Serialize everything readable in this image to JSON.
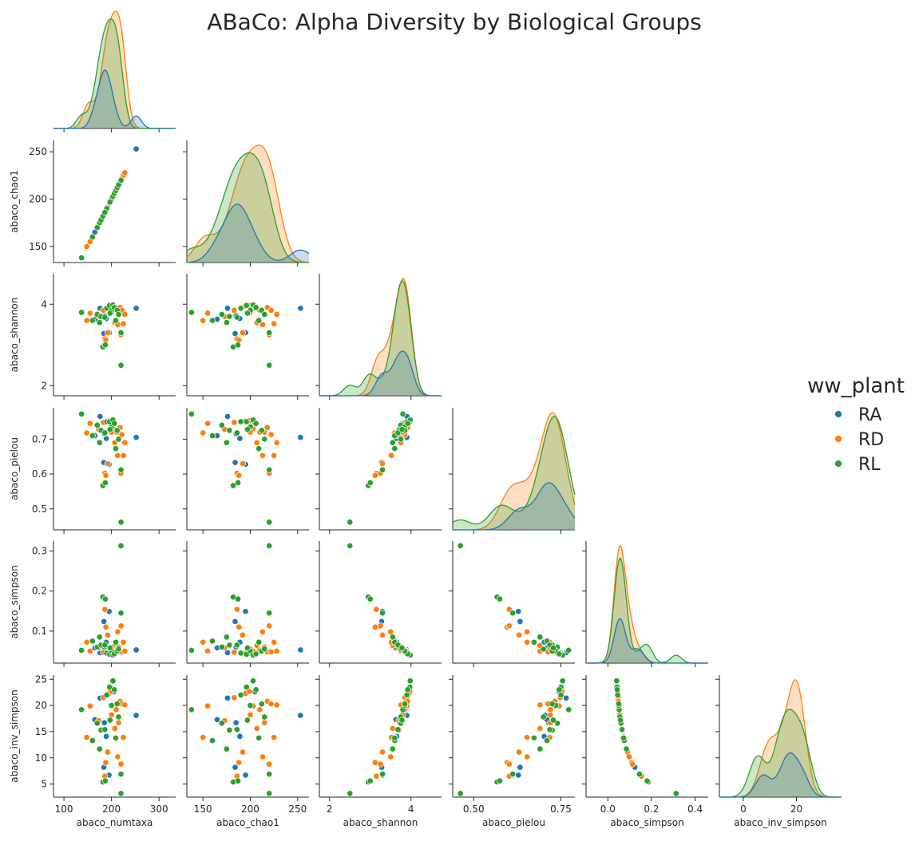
{
  "chart_data": {
    "type": "scatter",
    "subtype": "pairplot-lower-corner-with-kde-diagonal",
    "title": "ABaCo: Alpha Diversity by Biological Groups",
    "legend": {
      "title": "ww_plant",
      "placement": "right",
      "entries": [
        {
          "name": "RA",
          "color": "#1f77b4"
        },
        {
          "name": "RD",
          "color": "#ff7f0e"
        },
        {
          "name": "RL",
          "color": "#2ca02c"
        }
      ]
    },
    "variables": [
      "abaco_numtaxa",
      "abaco_chao1",
      "abaco_shannon",
      "abaco_pielou",
      "abaco_simpson",
      "abaco_inv_simpson"
    ],
    "axes": {
      "abaco_numtaxa": {
        "range": [
          78,
          335
        ],
        "ticks": [
          100,
          200,
          300
        ],
        "tick_labels": [
          "100",
          "200",
          "300"
        ]
      },
      "abaco_chao1": {
        "range": [
          133,
          262
        ],
        "ticks": [
          150,
          200,
          250
        ],
        "tick_labels": [
          "150",
          "200",
          "250"
        ]
      },
      "abaco_shannon": {
        "range": [
          1.75,
          4.75
        ],
        "ticks": [
          2,
          4
        ],
        "tick_labels": [
          "2",
          "4"
        ]
      },
      "abaco_pielou": {
        "range": [
          0.44,
          0.79
        ],
        "ticks": [
          0.5,
          0.6,
          0.7
        ],
        "tick_labels": [
          "0.5",
          "0.6",
          "0.7"
        ],
        "x_ticks": [
          0.5,
          0.75
        ],
        "x_tick_labels": [
          "0.50",
          "0.75"
        ]
      },
      "abaco_simpson": {
        "range": [
          0.02,
          0.325
        ],
        "ticks": [
          0.1,
          0.2,
          0.3
        ],
        "tick_labels": [
          "0.1",
          "0.2",
          "0.3"
        ],
        "x_range": [
          -0.1,
          0.46
        ],
        "x_ticks": [
          0.0,
          0.2,
          0.4
        ],
        "x_tick_labels": [
          "0.0",
          "0.2",
          "0.4"
        ]
      },
      "abaco_inv_simpson": {
        "range": [
          2.5,
          25.8
        ],
        "ticks": [
          5,
          10,
          15,
          20,
          25
        ],
        "tick_labels": [
          "5",
          "10",
          "15",
          "20",
          "25"
        ],
        "x_range": [
          -9,
          37
        ],
        "x_ticks": [
          0,
          20
        ],
        "x_tick_labels": [
          "0",
          "20"
        ]
      }
    },
    "points": [
      {
        "group": "RA",
        "abaco_numtaxa": 252,
        "abaco_chao1": 253,
        "abaco_shannon": 3.9,
        "abaco_pielou": 0.705,
        "abaco_simpson": 0.053,
        "abaco_inv_simpson": 18.1
      },
      {
        "group": "RA",
        "abaco_numtaxa": 176,
        "abaco_chao1": 176,
        "abaco_shannon": 3.9,
        "abaco_pielou": 0.765,
        "abaco_simpson": 0.046,
        "abaco_inv_simpson": 21.4
      },
      {
        "group": "RA",
        "abaco_numtaxa": 184,
        "abaco_chao1": 184,
        "abaco_shannon": 3.28,
        "abaco_pielou": 0.633,
        "abaco_simpson": 0.124,
        "abaco_inv_simpson": 8.2
      },
      {
        "group": "RA",
        "abaco_numtaxa": 189,
        "abaco_chao1": 189,
        "abaco_shannon": 3.65,
        "abaco_pielou": 0.702,
        "abaco_simpson": 0.072,
        "abaco_inv_simpson": 14.1
      },
      {
        "group": "RA",
        "abaco_numtaxa": 195,
        "abaco_chao1": 195,
        "abaco_shannon": 3.3,
        "abaco_pielou": 0.628,
        "abaco_simpson": 0.149,
        "abaco_inv_simpson": 6.7
      },
      {
        "group": "RA",
        "abaco_numtaxa": 205,
        "abaco_chao1": 205,
        "abaco_shannon": 3.95,
        "abaco_pielou": 0.745,
        "abaco_simpson": 0.044,
        "abaco_inv_simpson": 22.6
      },
      {
        "group": "RA",
        "abaco_numtaxa": 185,
        "abaco_chao1": 185,
        "abaco_shannon": 3.72,
        "abaco_pielou": 0.715,
        "abaco_simpson": 0.06,
        "abaco_inv_simpson": 16.7
      },
      {
        "group": "RA",
        "abaco_numtaxa": 165,
        "abaco_chao1": 165,
        "abaco_shannon": 3.63,
        "abaco_pielou": 0.71,
        "abaco_simpson": 0.058,
        "abaco_inv_simpson": 17.3
      },
      {
        "group": "RD",
        "abaco_numtaxa": 148,
        "abaco_chao1": 150,
        "abaco_shannon": 3.6,
        "abaco_pielou": 0.718,
        "abaco_simpson": 0.072,
        "abaco_inv_simpson": 13.9
      },
      {
        "group": "RD",
        "abaco_numtaxa": 155,
        "abaco_chao1": 155,
        "abaco_shannon": 3.78,
        "abaco_pielou": 0.745,
        "abaco_simpson": 0.05,
        "abaco_inv_simpson": 19.9
      },
      {
        "group": "RD",
        "abaco_numtaxa": 173,
        "abaco_chao1": 173,
        "abaco_shannon": 3.7,
        "abaco_pielou": 0.728,
        "abaco_simpson": 0.058,
        "abaco_inv_simpson": 17.1
      },
      {
        "group": "RD",
        "abaco_numtaxa": 183,
        "abaco_chao1": 183,
        "abaco_shannon": 3.85,
        "abaco_pielou": 0.748,
        "abaco_simpson": 0.047,
        "abaco_inv_simpson": 21.5
      },
      {
        "group": "RD",
        "abaco_numtaxa": 186,
        "abaco_chao1": 186,
        "abaco_shannon": 3.15,
        "abaco_pielou": 0.602,
        "abaco_simpson": 0.154,
        "abaco_inv_simpson": 6.5
      },
      {
        "group": "RD",
        "abaco_numtaxa": 188,
        "abaco_chao1": 188,
        "abaco_shannon": 3.12,
        "abaco_pielou": 0.596,
        "abaco_simpson": 0.11,
        "abaco_inv_simpson": 9.1
      },
      {
        "group": "RD",
        "abaco_numtaxa": 192,
        "abaco_chao1": 192,
        "abaco_shannon": 3.3,
        "abaco_pielou": 0.63,
        "abaco_simpson": 0.09,
        "abaco_inv_simpson": 11.1
      },
      {
        "group": "RD",
        "abaco_numtaxa": 195,
        "abaco_chao1": 195,
        "abaco_shannon": 3.95,
        "abaco_pielou": 0.752,
        "abaco_simpson": 0.045,
        "abaco_inv_simpson": 22.3
      },
      {
        "group": "RD",
        "abaco_numtaxa": 199,
        "abaco_chao1": 199,
        "abaco_shannon": 3.97,
        "abaco_pielou": 0.753,
        "abaco_simpson": 0.044,
        "abaco_inv_simpson": 22.7
      },
      {
        "group": "RD",
        "abaco_numtaxa": 203,
        "abaco_chao1": 203,
        "abaco_shannon": 3.9,
        "abaco_pielou": 0.73,
        "abaco_simpson": 0.05,
        "abaco_inv_simpson": 19.9
      },
      {
        "group": "RD",
        "abaco_numtaxa": 207,
        "abaco_chao1": 207,
        "abaco_shannon": 3.55,
        "abaco_pielou": 0.69,
        "abaco_simpson": 0.064,
        "abaco_inv_simpson": 15.6
      },
      {
        "group": "RD",
        "abaco_numtaxa": 210,
        "abaco_chao1": 210,
        "abaco_shannon": 3.85,
        "abaco_pielou": 0.72,
        "abaco_simpson": 0.052,
        "abaco_inv_simpson": 19.2
      },
      {
        "group": "RD",
        "abaco_numtaxa": 213,
        "abaco_chao1": 213,
        "abaco_shannon": 3.5,
        "abaco_pielou": 0.653,
        "abaco_simpson": 0.098,
        "abaco_inv_simpson": 10.2
      },
      {
        "group": "RD",
        "abaco_numtaxa": 215,
        "abaco_chao1": 215,
        "abaco_shannon": 3.75,
        "abaco_pielou": 0.72,
        "abaco_simpson": 0.06,
        "abaco_inv_simpson": 16.7
      },
      {
        "group": "RD",
        "abaco_numtaxa": 218,
        "abaco_chao1": 218,
        "abaco_shannon": 3.92,
        "abaco_pielou": 0.733,
        "abaco_simpson": 0.048,
        "abaco_inv_simpson": 20.8
      },
      {
        "group": "RD",
        "abaco_numtaxa": 220,
        "abaco_chao1": 220,
        "abaco_shannon": 3.25,
        "abaco_pielou": 0.602,
        "abaco_simpson": 0.113,
        "abaco_inv_simpson": 8.8
      },
      {
        "group": "RD",
        "abaco_numtaxa": 222,
        "abaco_chao1": 222,
        "abaco_shannon": 3.85,
        "abaco_pielou": 0.713,
        "abaco_simpson": 0.048,
        "abaco_inv_simpson": 20.3
      },
      {
        "group": "RD",
        "abaco_numtaxa": 225,
        "abaco_chao1": 225,
        "abaco_shannon": 3.52,
        "abaco_pielou": 0.653,
        "abaco_simpson": 0.072,
        "abaco_inv_simpson": 13.9
      },
      {
        "group": "RD",
        "abaco_numtaxa": 228,
        "abaco_chao1": 228,
        "abaco_shannon": 3.75,
        "abaco_pielou": 0.69,
        "abaco_simpson": 0.05,
        "abaco_inv_simpson": 20.1
      },
      {
        "group": "RD",
        "abaco_numtaxa": 200,
        "abaco_chao1": 200,
        "abaco_shannon": 3.8,
        "abaco_pielou": 0.72,
        "abaco_simpson": 0.055,
        "abaco_inv_simpson": 18.2
      },
      {
        "group": "RL",
        "abaco_numtaxa": 137,
        "abaco_chao1": 138,
        "abaco_shannon": 3.8,
        "abaco_pielou": 0.772,
        "abaco_simpson": 0.052,
        "abaco_inv_simpson": 19.2
      },
      {
        "group": "RL",
        "abaco_numtaxa": 160,
        "abaco_chao1": 160,
        "abaco_shannon": 3.6,
        "abaco_pielou": 0.71,
        "abaco_simpson": 0.075,
        "abaco_inv_simpson": 13.3
      },
      {
        "group": "RL",
        "abaco_numtaxa": 170,
        "abaco_chao1": 170,
        "abaco_shannon": 3.75,
        "abaco_pielou": 0.74,
        "abaco_simpson": 0.06,
        "abaco_inv_simpson": 16.6
      },
      {
        "group": "RL",
        "abaco_numtaxa": 175,
        "abaco_chao1": 175,
        "abaco_shannon": 3.55,
        "abaco_pielou": 0.69,
        "abaco_simpson": 0.085,
        "abaco_inv_simpson": 11.7
      },
      {
        "group": "RL",
        "abaco_numtaxa": 178,
        "abaco_chao1": 178,
        "abaco_shannon": 3.7,
        "abaco_pielou": 0.725,
        "abaco_simpson": 0.065,
        "abaco_inv_simpson": 15.3
      },
      {
        "group": "RL",
        "abaco_numtaxa": 182,
        "abaco_chao1": 182,
        "abaco_shannon": 2.95,
        "abaco_pielou": 0.567,
        "abaco_simpson": 0.185,
        "abaco_inv_simpson": 5.4
      },
      {
        "group": "RL",
        "abaco_numtaxa": 187,
        "abaco_chao1": 187,
        "abaco_shannon": 3.0,
        "abaco_pielou": 0.575,
        "abaco_simpson": 0.18,
        "abaco_inv_simpson": 5.6
      },
      {
        "group": "RL",
        "abaco_numtaxa": 190,
        "abaco_chao1": 190,
        "abaco_shannon": 3.9,
        "abaco_pielou": 0.75,
        "abaco_simpson": 0.045,
        "abaco_inv_simpson": 22.0
      },
      {
        "group": "RL",
        "abaco_numtaxa": 196,
        "abaco_chao1": 196,
        "abaco_shannon": 3.97,
        "abaco_pielou": 0.75,
        "abaco_simpson": 0.042,
        "abaco_inv_simpson": 23.5
      },
      {
        "group": "RL",
        "abaco_numtaxa": 200,
        "abaco_chao1": 200,
        "abaco_shannon": 3.85,
        "abaco_pielou": 0.735,
        "abaco_simpson": 0.05,
        "abaco_inv_simpson": 20.0
      },
      {
        "group": "RL",
        "abaco_numtaxa": 203,
        "abaco_chao1": 203,
        "abaco_shannon": 3.98,
        "abaco_pielou": 0.755,
        "abaco_simpson": 0.04,
        "abaco_inv_simpson": 24.7
      },
      {
        "group": "RL",
        "abaco_numtaxa": 206,
        "abaco_chao1": 206,
        "abaco_shannon": 3.92,
        "abaco_pielou": 0.745,
        "abaco_simpson": 0.043,
        "abaco_inv_simpson": 23.0
      },
      {
        "group": "RL",
        "abaco_numtaxa": 209,
        "abaco_chao1": 209,
        "abaco_shannon": 3.6,
        "abaco_pielou": 0.673,
        "abaco_simpson": 0.072,
        "abaco_inv_simpson": 13.8
      },
      {
        "group": "RL",
        "abaco_numtaxa": 212,
        "abaco_chao1": 212,
        "abaco_shannon": 3.85,
        "abaco_pielou": 0.725,
        "abaco_simpson": 0.05,
        "abaco_inv_simpson": 20.3
      },
      {
        "group": "RL",
        "abaco_numtaxa": 215,
        "abaco_chao1": 215,
        "abaco_shannon": 3.75,
        "abaco_pielou": 0.7,
        "abaco_simpson": 0.055,
        "abaco_inv_simpson": 17.8
      },
      {
        "group": "RL",
        "abaco_numtaxa": 220,
        "abaco_chao1": 220,
        "abaco_shannon": 2.5,
        "abaco_pielou": 0.462,
        "abaco_simpson": 0.313,
        "abaco_inv_simpson": 3.2
      },
      {
        "group": "RL",
        "abaco_numtaxa": 220,
        "abaco_chao1": 220,
        "abaco_shannon": 3.3,
        "abaco_pielou": 0.612,
        "abaco_simpson": 0.145,
        "abaco_inv_simpson": 6.9
      },
      {
        "group": "RL",
        "abaco_numtaxa": 186,
        "abaco_chao1": 186,
        "abaco_shannon": 3.68,
        "abaco_pielou": 0.718,
        "abaco_simpson": 0.065,
        "abaco_inv_simpson": 15.4
      },
      {
        "group": "RL",
        "abaco_numtaxa": 197,
        "abaco_chao1": 197,
        "abaco_shannon": 3.78,
        "abaco_pielou": 0.728,
        "abaco_simpson": 0.058,
        "abaco_inv_simpson": 17.2
      }
    ]
  }
}
